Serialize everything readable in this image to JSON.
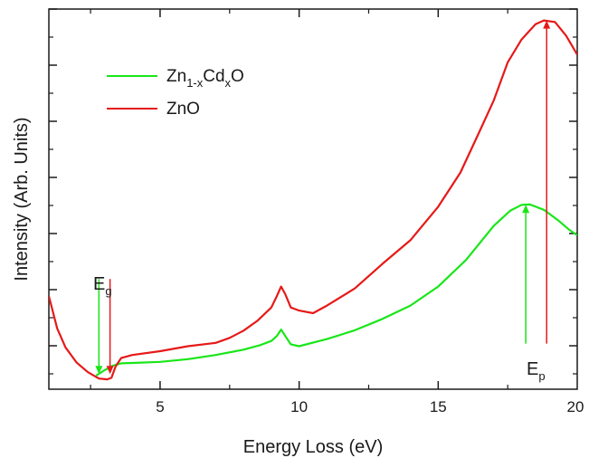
{
  "chart_data": {
    "type": "line",
    "title": "",
    "xlabel": "Energy Loss (eV)",
    "ylabel": "Intensity (Arb. Units)",
    "xlim": [
      1,
      20
    ],
    "ylim": [
      0,
      1
    ],
    "x_ticks": [
      5,
      10,
      15,
      20
    ],
    "x_tick_labels": [
      "5",
      "10",
      "15",
      "20"
    ],
    "y_tick_labels_shown": false,
    "grid": false,
    "legend_position": "top-left",
    "series": [
      {
        "name_main": "Zn",
        "name_sub1": "1-x",
        "name_mid": "Cd",
        "name_sub2": "x",
        "name_end": "O",
        "color": "#19e619",
        "points": [
          [
            2.7,
            0.036
          ],
          [
            3.0,
            0.05
          ],
          [
            3.3,
            0.062
          ],
          [
            3.6,
            0.068
          ],
          [
            4,
            0.069
          ],
          [
            5,
            0.072
          ],
          [
            6,
            0.079
          ],
          [
            7,
            0.09
          ],
          [
            8,
            0.104
          ],
          [
            8.6,
            0.116
          ],
          [
            9.0,
            0.127
          ],
          [
            9.2,
            0.14
          ],
          [
            9.35,
            0.157
          ],
          [
            9.5,
            0.14
          ],
          [
            9.7,
            0.118
          ],
          [
            10,
            0.113
          ],
          [
            11,
            0.132
          ],
          [
            12,
            0.155
          ],
          [
            13,
            0.185
          ],
          [
            14,
            0.22
          ],
          [
            15,
            0.27
          ],
          [
            16,
            0.34
          ],
          [
            17,
            0.43
          ],
          [
            17.6,
            0.47
          ],
          [
            18,
            0.485
          ],
          [
            18.3,
            0.486
          ],
          [
            18.8,
            0.472
          ],
          [
            19.3,
            0.445
          ],
          [
            19.7,
            0.42
          ],
          [
            20,
            0.405
          ]
        ]
      },
      {
        "name": "ZnO",
        "color": "#e61919",
        "points": [
          [
            1,
            0.245
          ],
          [
            1.3,
            0.16
          ],
          [
            1.6,
            0.11
          ],
          [
            2.0,
            0.07
          ],
          [
            2.4,
            0.045
          ],
          [
            2.8,
            0.028
          ],
          [
            3.1,
            0.026
          ],
          [
            3.25,
            0.03
          ],
          [
            3.4,
            0.06
          ],
          [
            3.6,
            0.082
          ],
          [
            4,
            0.09
          ],
          [
            5,
            0.1
          ],
          [
            6,
            0.113
          ],
          [
            7,
            0.122
          ],
          [
            7.5,
            0.135
          ],
          [
            8,
            0.154
          ],
          [
            8.5,
            0.18
          ],
          [
            9.0,
            0.215
          ],
          [
            9.2,
            0.245
          ],
          [
            9.35,
            0.27
          ],
          [
            9.5,
            0.25
          ],
          [
            9.7,
            0.215
          ],
          [
            10.0,
            0.207
          ],
          [
            10.5,
            0.2
          ],
          [
            11,
            0.22
          ],
          [
            12,
            0.265
          ],
          [
            13,
            0.33
          ],
          [
            14,
            0.392
          ],
          [
            15,
            0.48
          ],
          [
            15.8,
            0.57
          ],
          [
            16.5,
            0.68
          ],
          [
            17,
            0.76
          ],
          [
            17.5,
            0.86
          ],
          [
            18,
            0.92
          ],
          [
            18.5,
            0.96
          ],
          [
            18.8,
            0.97
          ],
          [
            19.2,
            0.966
          ],
          [
            19.6,
            0.93
          ],
          [
            20,
            0.88
          ]
        ]
      }
    ],
    "annotations": [
      {
        "text": "E",
        "sub": "g",
        "x": 3.1
      },
      {
        "text": "E",
        "sub": "p",
        "x": 18.6
      }
    ],
    "arrows": [
      {
        "x": 2.8,
        "y_from": 0.29,
        "y_to": 0.04,
        "color": "#19e619"
      },
      {
        "x": 3.2,
        "y_from": 0.29,
        "y_to": 0.04,
        "color": "#e61919"
      },
      {
        "x": 18.15,
        "y_from": 0.12,
        "y_to": 0.485,
        "color": "#19e619"
      },
      {
        "x": 18.9,
        "y_from": 0.12,
        "y_to": 0.97,
        "color": "#e61919"
      }
    ]
  }
}
